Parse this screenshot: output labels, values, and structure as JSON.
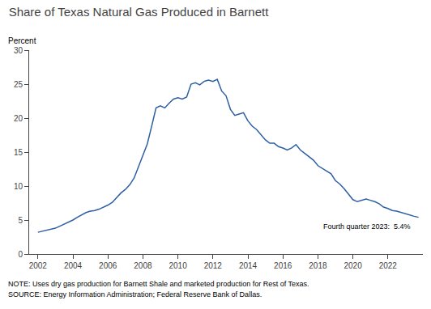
{
  "chart_data": {
    "type": "line",
    "title": "Share of Texas Natural Gas Produced in Barnett",
    "ylabel": "Percent",
    "color": "#2E5FA3",
    "annotations": [
      {
        "text": "Fourth quarter 2023:  5.4%",
        "x": 2018.2,
        "y": 3.2
      }
    ],
    "notes": [
      "NOTE: Uses dry gas production for Barnett Shale and marketed production for Rest of Texas.",
      "SOURCE: Energy Information Administration; Federal Reserve Bank of Dallas."
    ],
    "x": [
      2002.0,
      2002.25,
      2002.5,
      2002.75,
      2003.0,
      2003.25,
      2003.5,
      2003.75,
      2004.0,
      2004.25,
      2004.5,
      2004.75,
      2005.0,
      2005.25,
      2005.5,
      2005.75,
      2006.0,
      2006.25,
      2006.5,
      2006.75,
      2007.0,
      2007.25,
      2007.5,
      2007.75,
      2008.0,
      2008.25,
      2008.5,
      2008.75,
      2009.0,
      2009.25,
      2009.5,
      2009.75,
      2010.0,
      2010.25,
      2010.5,
      2010.75,
      2011.0,
      2011.25,
      2011.5,
      2011.75,
      2012.0,
      2012.25,
      2012.5,
      2012.75,
      2013.0,
      2013.25,
      2013.5,
      2013.75,
      2014.0,
      2014.25,
      2014.5,
      2014.75,
      2015.0,
      2015.25,
      2015.5,
      2015.75,
      2016.0,
      2016.25,
      2016.5,
      2016.75,
      2017.0,
      2017.25,
      2017.5,
      2017.75,
      2018.0,
      2018.25,
      2018.5,
      2018.75,
      2019.0,
      2019.25,
      2019.5,
      2019.75,
      2020.0,
      2020.25,
      2020.5,
      2020.75,
      2021.0,
      2021.25,
      2021.5,
      2021.75,
      2022.0,
      2022.25,
      2022.5,
      2022.75,
      2023.0,
      2023.25,
      2023.5,
      2023.75
    ],
    "values": [
      3.2,
      3.35,
      3.5,
      3.65,
      3.8,
      4.1,
      4.4,
      4.7,
      5.0,
      5.4,
      5.8,
      6.1,
      6.3,
      6.4,
      6.6,
      6.9,
      7.2,
      7.6,
      8.3,
      9.0,
      9.5,
      10.2,
      11.2,
      12.8,
      14.5,
      16.2,
      18.8,
      21.5,
      21.8,
      21.5,
      22.2,
      22.8,
      23.0,
      22.8,
      23.1,
      25.0,
      25.2,
      24.9,
      25.4,
      25.6,
      25.4,
      25.7,
      24.0,
      23.3,
      21.3,
      20.4,
      20.6,
      20.8,
      19.6,
      18.8,
      18.3,
      17.6,
      16.8,
      16.3,
      16.3,
      15.8,
      15.6,
      15.3,
      15.6,
      16.1,
      15.3,
      14.8,
      14.3,
      13.8,
      13.0,
      12.6,
      12.3,
      11.8,
      10.8,
      10.3,
      9.6,
      8.8,
      8.0,
      7.7,
      7.9,
      8.1,
      7.9,
      7.7,
      7.4,
      6.9,
      6.7,
      6.4,
      6.3,
      6.1,
      5.9,
      5.75,
      5.55,
      5.4
    ],
    "xlim": [
      2001.5,
      2024.0
    ],
    "xticks": [
      2002,
      2004,
      2006,
      2008,
      2010,
      2012,
      2014,
      2016,
      2018,
      2020,
      2022
    ],
    "ylim": [
      0,
      30
    ],
    "yticks": [
      0,
      5,
      10,
      15,
      20,
      25,
      30
    ],
    "grid": false
  }
}
